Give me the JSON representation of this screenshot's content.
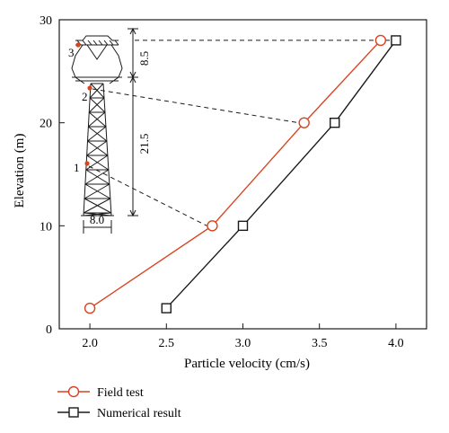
{
  "chart_data": {
    "type": "line",
    "xlabel": "Particle velocity (cm/s)",
    "ylabel": "Elevation (m)",
    "xlim": [
      1.8,
      4.2
    ],
    "ylim": [
      0,
      30
    ],
    "xticks": [
      "2.0",
      "2.5",
      "3.0",
      "3.5",
      "4.0"
    ],
    "yticks": [
      "0",
      "10",
      "20",
      "30"
    ],
    "grid": false,
    "legend_position": "bottom-left, outside plot",
    "series": [
      {
        "name": "Field test",
        "color": "#d9431e",
        "marker": "circle",
        "x": [
          2.0,
          2.8,
          3.4,
          3.9
        ],
        "y": [
          2,
          10,
          20,
          28
        ]
      },
      {
        "name": "Numerical result",
        "color": "#1a1a1a",
        "marker": "square",
        "x": [
          2.5,
          3.0,
          3.6,
          4.0
        ],
        "y": [
          2,
          10,
          20,
          28
        ]
      }
    ],
    "inset": {
      "description": "transmission tower sketch",
      "measurement_point_labels": [
        "1",
        "2",
        "3"
      ],
      "dimension_labels": {
        "top_section": "8.5",
        "lower_section": "21.5",
        "base_width": "8.0"
      },
      "point_color": "#d9431e"
    }
  }
}
